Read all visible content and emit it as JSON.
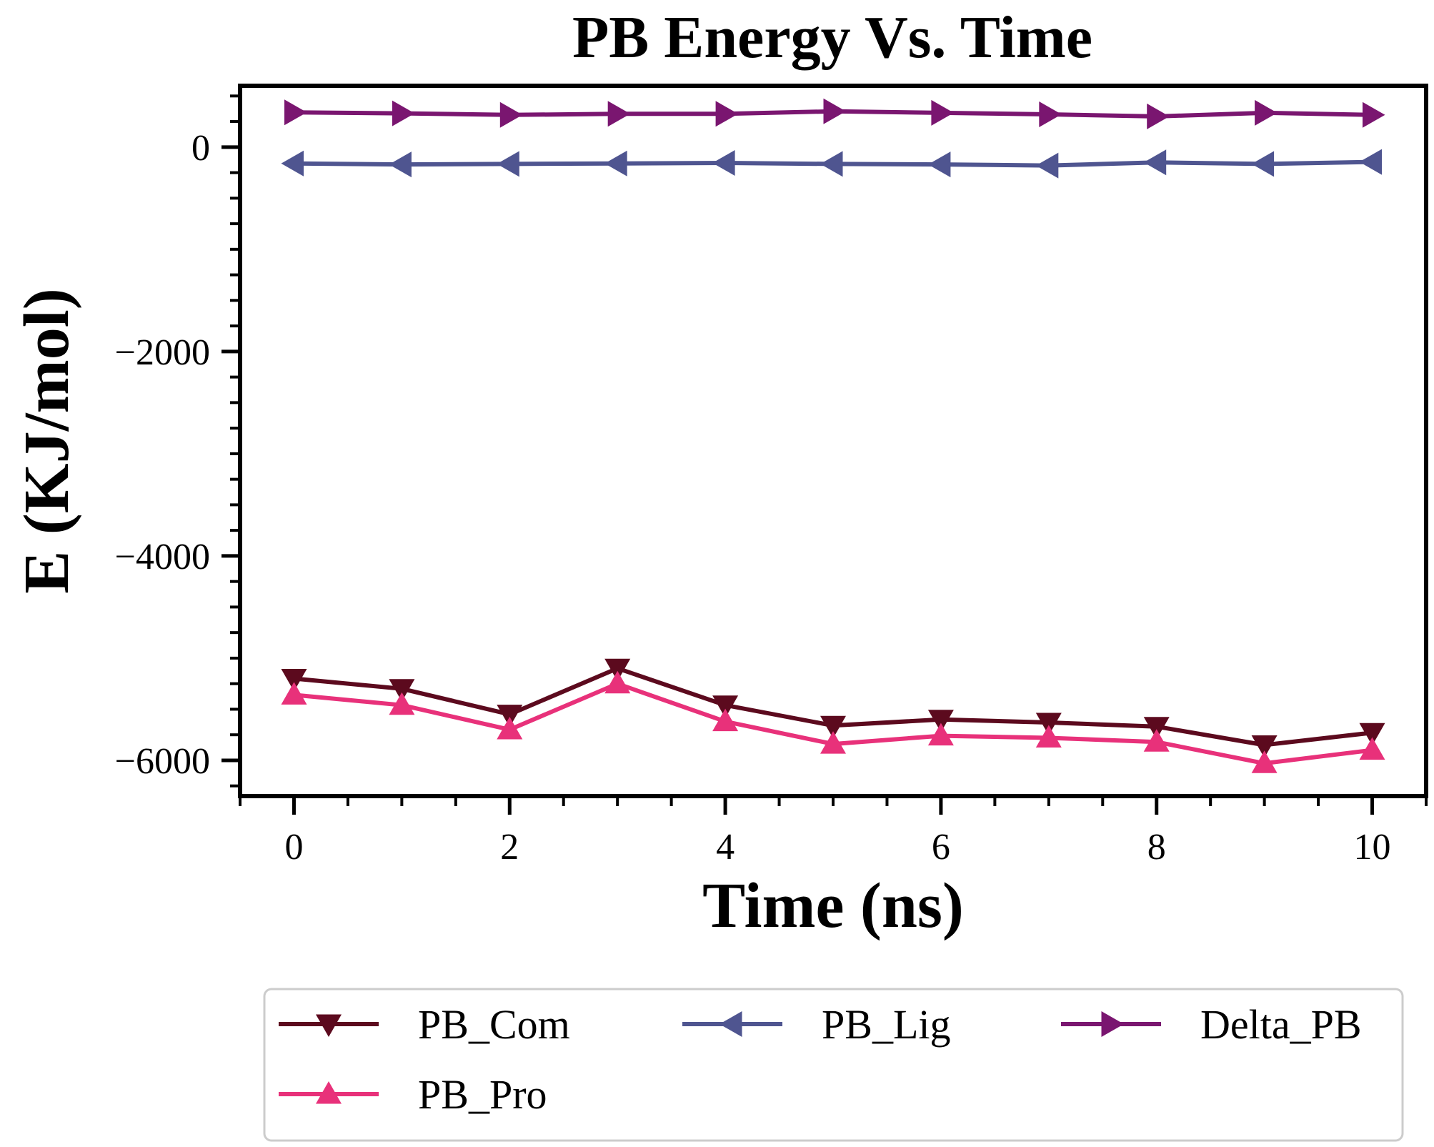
{
  "chart_data": {
    "type": "line",
    "title": "PB Energy Vs. Time",
    "xlabel": "Time (ns)",
    "ylabel": "E (KJ/mol)",
    "xlim": [
      -0.5,
      10.5
    ],
    "ylim": [
      -6350,
      600
    ],
    "xticks": [
      0,
      2,
      4,
      6,
      8,
      10
    ],
    "xtick_labels": [
      "0",
      "2",
      "4",
      "6",
      "8",
      "10"
    ],
    "yticks": [
      0,
      -2000,
      -4000,
      -6000
    ],
    "ytick_labels": [
      "0",
      "−2000",
      "−4000",
      "−6000"
    ],
    "x": [
      0,
      1,
      2,
      3,
      4,
      5,
      6,
      7,
      8,
      9,
      10
    ],
    "legend_position": "below",
    "series": [
      {
        "name": "PB_Com",
        "color": "#5c0a1e",
        "marker": "triangle-down",
        "values": [
          -5200,
          -5300,
          -5550,
          -5100,
          -5460,
          -5660,
          -5600,
          -5630,
          -5670,
          -5850,
          -5730
        ]
      },
      {
        "name": "PB_Pro",
        "color": "#e8317a",
        "marker": "triangle-up",
        "values": [
          -5360,
          -5460,
          -5700,
          -5250,
          -5620,
          -5840,
          -5760,
          -5780,
          -5820,
          -6030,
          -5900
        ]
      },
      {
        "name": "PB_Lig",
        "color": "#4f5590",
        "marker": "triangle-left",
        "values": [
          -160,
          -170,
          -165,
          -160,
          -155,
          -165,
          -170,
          -180,
          -150,
          -165,
          -145
        ]
      },
      {
        "name": "Delta_PB",
        "color": "#7a1670",
        "marker": "triangle-right",
        "values": [
          340,
          330,
          315,
          325,
          325,
          350,
          335,
          320,
          300,
          335,
          315
        ]
      }
    ]
  }
}
